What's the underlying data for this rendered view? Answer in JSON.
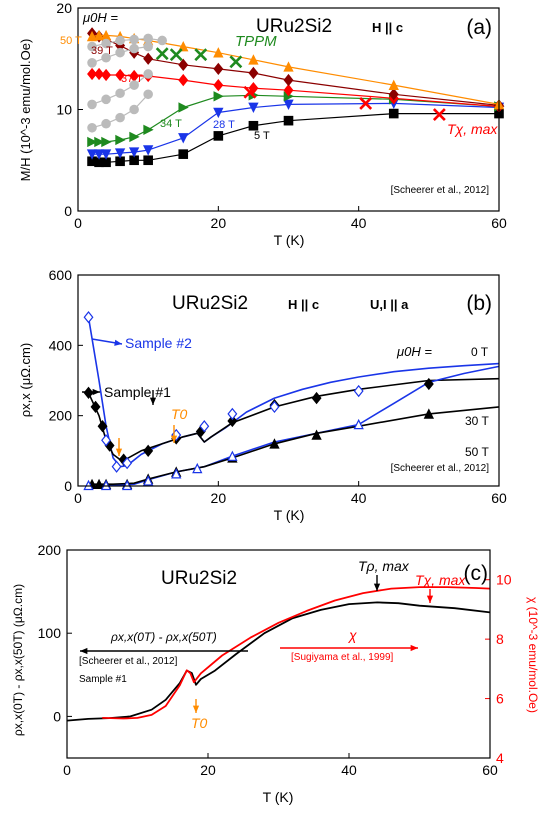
{
  "chart_data": [
    {
      "panel": "(a)",
      "type": "line",
      "compound_label": "URu2Si2",
      "field_label": "H || c",
      "xlabel": "T (K)",
      "ylabel": "M/H (10^-3 emu/mol.Oe)",
      "xlim": [
        0,
        60
      ],
      "ylim": [
        0,
        20
      ],
      "xticks": [
        0,
        20,
        40,
        60
      ],
      "yticks": [
        0,
        10,
        20
      ],
      "mu0H_label": "μ0H =",
      "tppm_label": "TPPM",
      "tchimax_label": "Tχ, max",
      "reference": "[Scheerer et al., 2012]",
      "series": [
        {
          "name": "5 T",
          "color": "#000000",
          "marker": "square",
          "x": [
            2,
            3,
            4,
            6,
            8,
            10,
            15,
            20,
            25,
            30,
            45,
            60
          ],
          "y": [
            4.9,
            4.8,
            4.8,
            4.9,
            5.0,
            5.0,
            5.6,
            7.4,
            8.4,
            8.9,
            9.6,
            9.6
          ]
        },
        {
          "name": "28 T",
          "color": "#1a35e8",
          "marker": "triangle-down",
          "x": [
            2,
            3,
            4,
            6,
            8,
            10,
            15,
            20,
            25,
            30,
            45,
            60
          ],
          "y": [
            5.6,
            5.6,
            5.6,
            5.7,
            5.8,
            6.0,
            7.2,
            9.7,
            10.2,
            10.5,
            10.6,
            10.2
          ]
        },
        {
          "name": "34 T",
          "color": "#1f8a1f",
          "marker": "triangle-right",
          "x": [
            2,
            3,
            4,
            6,
            8,
            10,
            15,
            20,
            25,
            30,
            45,
            60
          ],
          "y": [
            6.8,
            6.8,
            6.8,
            7.0,
            7.3,
            8.0,
            10.2,
            11.3,
            11.4,
            11.3,
            11.0,
            10.3
          ]
        },
        {
          "name": "37 T",
          "color": "#ff0000",
          "marker": "diamond",
          "x": [
            2,
            3,
            4,
            6,
            8,
            10,
            15,
            20,
            25,
            30,
            45,
            60
          ],
          "y": [
            13.5,
            13.5,
            13.4,
            13.4,
            13.3,
            13.3,
            12.9,
            12.4,
            12.1,
            11.9,
            11.1,
            10.3
          ]
        },
        {
          "name": "39 T",
          "color": "#8b0000",
          "marker": "diamond",
          "x": [
            2,
            3,
            4,
            6,
            8,
            10,
            15,
            20,
            25,
            30,
            45,
            60
          ],
          "y": [
            17.5,
            17.2,
            16.9,
            16.3,
            15.6,
            15.0,
            14.4,
            14.0,
            13.6,
            12.9,
            11.5,
            10.4
          ]
        },
        {
          "name": "50 T",
          "color": "#ff8c00",
          "marker": "triangle-up",
          "x": [
            2,
            3,
            4,
            6,
            8,
            10,
            15,
            20,
            25,
            30,
            45,
            60
          ],
          "y": [
            17.2,
            17.3,
            17.3,
            17.2,
            17.0,
            16.8,
            16.2,
            15.6,
            14.9,
            14.2,
            12.4,
            10.5
          ]
        },
        {
          "name": "",
          "color": "#bbbbbb",
          "marker": "circle",
          "x": [
            2,
            4,
            6,
            8,
            10
          ],
          "y": [
            8.2,
            8.6,
            9.2,
            10.0,
            11.5
          ]
        },
        {
          "name": "",
          "color": "#bbbbbb",
          "marker": "circle",
          "x": [
            2,
            4,
            6,
            8,
            10
          ],
          "y": [
            10.5,
            11.0,
            11.6,
            12.4,
            13.5
          ]
        },
        {
          "name": "",
          "color": "#bbbbbb",
          "marker": "circle",
          "x": [
            2,
            4,
            6,
            8,
            10
          ],
          "y": [
            14.6,
            15.1,
            15.6,
            16.0,
            16.2
          ]
        },
        {
          "name": "",
          "color": "#bbbbbb",
          "marker": "circle",
          "x": [
            2,
            4,
            6,
            8,
            10,
            12
          ],
          "y": [
            16.2,
            16.5,
            16.8,
            16.9,
            17.0,
            16.8
          ]
        }
      ],
      "markers_x": {
        "tppm": {
          "color": "#1f8a1f",
          "x": [
            12,
            14,
            17.5,
            22.5
          ],
          "y": [
            15.5,
            15.4,
            15.4,
            14.7
          ]
        },
        "tchimax": {
          "color": "#ff0000",
          "x": [
            24.5,
            41,
            51.5
          ],
          "y": [
            11.7,
            10.6,
            9.5
          ]
        }
      }
    },
    {
      "panel": "(b)",
      "type": "line",
      "compound_label": "URu2Si2",
      "field_label": "H || c",
      "current_label": "U,I || a",
      "xlabel": "T (K)",
      "ylabel": "ρx,x (μΩ.cm)",
      "xlim": [
        0,
        60
      ],
      "ylim": [
        0,
        600
      ],
      "xticks": [
        0,
        20,
        40,
        60
      ],
      "yticks": [
        0,
        200,
        400,
        600
      ],
      "mu0H_label": "μ0H =",
      "field_labels": [
        "0 T",
        "30 T",
        "50 T"
      ],
      "sample1_label": "Sample #1",
      "sample2_label": "Sample #2",
      "t0_label": "T0",
      "reference": "[Scheerer et al., 2012]",
      "series": [
        {
          "name": "Sample #1, 0 T",
          "color": "#000000",
          "marker": "diamond-filled",
          "x": [
            1.5,
            2.5,
            3.5,
            4.5,
            6.5,
            10,
            14,
            17.5,
            22,
            28,
            34,
            50
          ],
          "y": [
            265,
            225,
            170,
            115,
            75,
            100,
            135,
            155,
            185,
            230,
            250,
            290
          ]
        },
        {
          "name": "Sample #2, 0 T",
          "color": "#1a35e8",
          "marker": "diamond-open",
          "x": [
            1.5,
            4,
            5.5,
            7,
            14,
            18,
            22,
            28,
            40
          ],
          "y": [
            480,
            130,
            55,
            65,
            145,
            170,
            205,
            225,
            270
          ]
        },
        {
          "name": "Sample #1, 50 T",
          "color": "#000000",
          "marker": "triangle-filled",
          "x": [
            2,
            3,
            4,
            7,
            10,
            14,
            22,
            28,
            34,
            50
          ],
          "y": [
            5,
            5,
            5,
            5,
            20,
            40,
            80,
            120,
            145,
            205
          ]
        },
        {
          "name": "Sample #2, 50 T",
          "color": "#1a35e8",
          "marker": "triangle-open",
          "x": [
            1.5,
            4,
            7,
            10,
            14,
            17,
            22,
            40
          ],
          "y": [
            2,
            2,
            2,
            15,
            35,
            50,
            85,
            175
          ]
        }
      ],
      "curves": [
        {
          "name": "Sample #2, 0 T curve",
          "color": "#1a35e8",
          "x": [
            1.5,
            3,
            4,
            5,
            6,
            7,
            9,
            12,
            15,
            17,
            18,
            19,
            21,
            24,
            28,
            32,
            36,
            40,
            45,
            50,
            55,
            60
          ],
          "y": [
            480,
            300,
            170,
            80,
            55,
            58,
            90,
            120,
            140,
            150,
            125,
            140,
            165,
            210,
            250,
            275,
            295,
            310,
            325,
            335,
            342,
            348
          ]
        },
        {
          "name": "Sample #1, 0 T curve",
          "color": "#000000",
          "x": [
            1.5,
            3,
            4,
            5,
            6,
            7,
            9,
            12,
            15,
            17,
            18,
            19,
            22,
            28,
            34,
            40,
            50,
            60
          ],
          "y": [
            265,
            200,
            130,
            90,
            75,
            78,
            100,
            120,
            140,
            150,
            125,
            140,
            180,
            225,
            255,
            275,
            300,
            305
          ]
        },
        {
          "name": "Sample #2, 50 T curve",
          "color": "#1a35e8",
          "x": [
            1.5,
            5,
            8,
            10,
            14,
            18,
            22,
            28,
            34,
            40,
            45,
            50,
            55,
            60
          ],
          "y": [
            2,
            2,
            5,
            18,
            40,
            55,
            85,
            125,
            150,
            175,
            235,
            295,
            320,
            340
          ]
        },
        {
          "name": "Sample #1, 50 T curve",
          "color": "#000000",
          "x": [
            1.5,
            5,
            8,
            10,
            14,
            18,
            22,
            28,
            34,
            40,
            50,
            60
          ],
          "y": [
            5,
            5,
            8,
            20,
            40,
            55,
            80,
            120,
            150,
            170,
            205,
            225
          ]
        }
      ]
    },
    {
      "panel": "(c)",
      "type": "line",
      "compound_label": "URu2Si2",
      "xlabel": "T (K)",
      "ylabel_left": "ρx,x(0T) - ρx,x(50T) (μΩ.cm)",
      "ylabel_right": "χ (10^-3 emu/mol.Oe)",
      "xlim": [
        0,
        60
      ],
      "ylim_left": [
        -50,
        200
      ],
      "ylim_right": [
        4,
        11
      ],
      "xticks": [
        0,
        20,
        40,
        60
      ],
      "yticks_left": [
        0,
        100,
        200
      ],
      "yticks_right": [
        4,
        6,
        8,
        10
      ],
      "trho_label": "Tρ, max",
      "tchi_label": "Tχ, max",
      "t0_label": "T0",
      "diff_label": "ρx,x(0T) - ρx,x(50T)",
      "chi_label": "χ",
      "ref_left": "[Scheerer et al., 2012]",
      "ref_right": "[Sugiyama et al., 1999]",
      "sample_label": "Sample #1",
      "series": [
        {
          "name": "ρx,x(0T) - ρx,x(50T)",
          "color": "#000000",
          "axis": "left",
          "x": [
            0,
            3,
            6,
            9,
            12,
            14,
            16,
            17,
            17.7,
            18.3,
            19,
            21,
            24,
            28,
            32,
            36,
            40,
            44,
            47,
            50,
            55,
            60
          ],
          "y": [
            -5,
            -3,
            -2,
            0,
            8,
            20,
            40,
            55,
            52,
            38,
            45,
            55,
            75,
            100,
            118,
            128,
            135,
            137,
            136,
            133,
            130,
            125
          ]
        },
        {
          "name": "χ",
          "color": "#ff0000",
          "axis": "right",
          "x": [
            5,
            8,
            10,
            12,
            14,
            16,
            17,
            17.5,
            18,
            19,
            22,
            26,
            30,
            34,
            38,
            42,
            46,
            50,
            54,
            58,
            60
          ],
          "y": [
            5.35,
            5.33,
            5.35,
            5.45,
            5.75,
            6.45,
            6.95,
            6.85,
            6.55,
            6.85,
            7.45,
            8.05,
            8.55,
            8.95,
            9.3,
            9.55,
            9.7,
            9.75,
            9.75,
            9.72,
            9.7
          ]
        }
      ]
    }
  ]
}
